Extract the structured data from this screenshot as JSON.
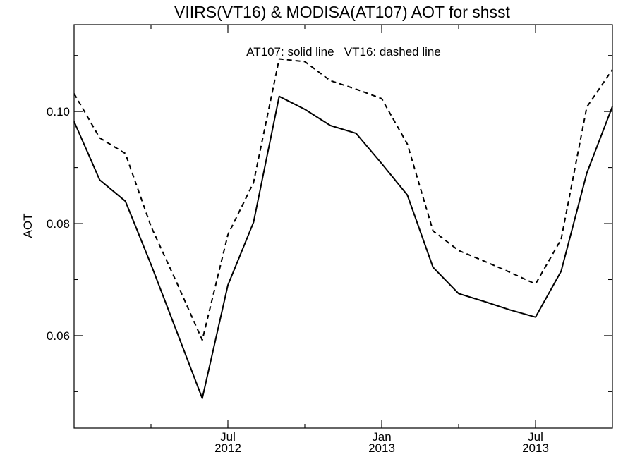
{
  "chart_data": {
    "type": "line",
    "title": "VIIRS(VT16) & MODISA(AT107)  AOT for shsst",
    "annotation": "AT107: solid line   VT16: dashed line",
    "ylabel": "AOT",
    "xlabel": "",
    "x": [
      "2012-01",
      "2012-02",
      "2012-03",
      "2012-04",
      "2012-05",
      "2012-06",
      "2012-07",
      "2012-08",
      "2012-09",
      "2012-10",
      "2012-11",
      "2012-12",
      "2013-01",
      "2013-02",
      "2013-03",
      "2013-04",
      "2013-05",
      "2013-06",
      "2013-07",
      "2013-08",
      "2013-09",
      "2013-10"
    ],
    "xlim": [
      "2012-01",
      "2013-10"
    ],
    "ylim": [
      0.0435,
      0.1155
    ],
    "y_ticks": [
      0.06,
      0.08,
      0.1
    ],
    "y_tick_labels": [
      "0.06",
      "0.08",
      "0.10"
    ],
    "x_major_ticks": [
      {
        "date": "2012-07",
        "month": "Jul",
        "year": "2012"
      },
      {
        "date": "2013-01",
        "month": "Jan",
        "year": "2013"
      },
      {
        "date": "2013-07",
        "month": "Jul",
        "year": "2013"
      }
    ],
    "series": [
      {
        "label": "AT107",
        "style": "solid",
        "color": "#000000",
        "values": [
          0.0982,
          0.0878,
          0.084,
          0.0727,
          0.0608,
          0.0488,
          0.069,
          0.0802,
          0.1027,
          0.1004,
          0.0975,
          0.0961,
          0.0907,
          0.0851,
          0.0722,
          0.0675,
          0.0661,
          0.0646,
          0.0633,
          0.0715,
          0.089,
          0.1009
        ]
      },
      {
        "label": "VT16",
        "style": "dashed",
        "color": "#000000",
        "values": [
          0.1032,
          0.0953,
          0.0925,
          0.0795,
          0.0695,
          0.0592,
          0.078,
          0.0873,
          0.1094,
          0.1089,
          0.1055,
          0.104,
          0.1023,
          0.0942,
          0.0787,
          0.0752,
          0.0733,
          0.0713,
          0.0692,
          0.0772,
          0.1008,
          0.1075
        ]
      }
    ],
    "grid": false,
    "legend": "none"
  }
}
